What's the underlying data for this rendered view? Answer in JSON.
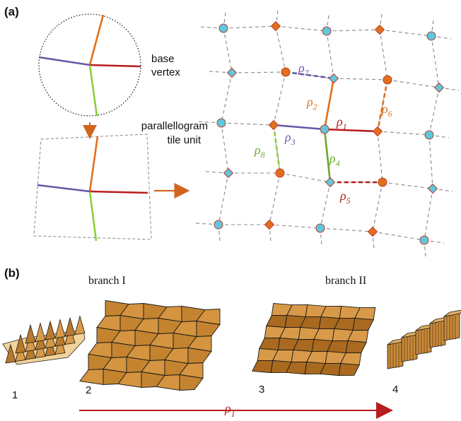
{
  "panel_a": {
    "label": "(a)",
    "base_vertex_label": [
      "base",
      "vertex"
    ],
    "tile_unit_label": [
      "parallellogram",
      "tile unit"
    ],
    "params": [
      {
        "sym": "ρ",
        "sub": "1",
        "color": "#b81c1c"
      },
      {
        "sym": "ρ",
        "sub": "2",
        "color": "#e0701c"
      },
      {
        "sym": "ρ",
        "sub": "3",
        "color": "#6a55a8"
      },
      {
        "sym": "ρ",
        "sub": "4",
        "color": "#6aa82a"
      },
      {
        "sym": "ρ",
        "sub": "5",
        "color": "#b81c1c"
      },
      {
        "sym": "ρ",
        "sub": "6",
        "color": "#e0701c"
      },
      {
        "sym": "ρ",
        "sub": "7",
        "color": "#6a55a8"
      },
      {
        "sym": "ρ",
        "sub": "8",
        "color": "#6aa82a"
      }
    ]
  },
  "panel_b": {
    "label": "(b)",
    "branch_1": "branch",
    "branch_1_numeral": "I",
    "branch_2": "branch",
    "branch_2_numeral": "II",
    "steps": [
      "1",
      "2",
      "3",
      "4"
    ],
    "axis_sym": "ρ",
    "axis_sub": "1"
  },
  "colors": {
    "red": "#b81c1c",
    "orange": "#e0701c",
    "purple": "#6a55a8",
    "green": "#6aa82a",
    "cyan": "#5ec8dc",
    "tile": "#c98a3a",
    "arrow": "#d0651f"
  }
}
